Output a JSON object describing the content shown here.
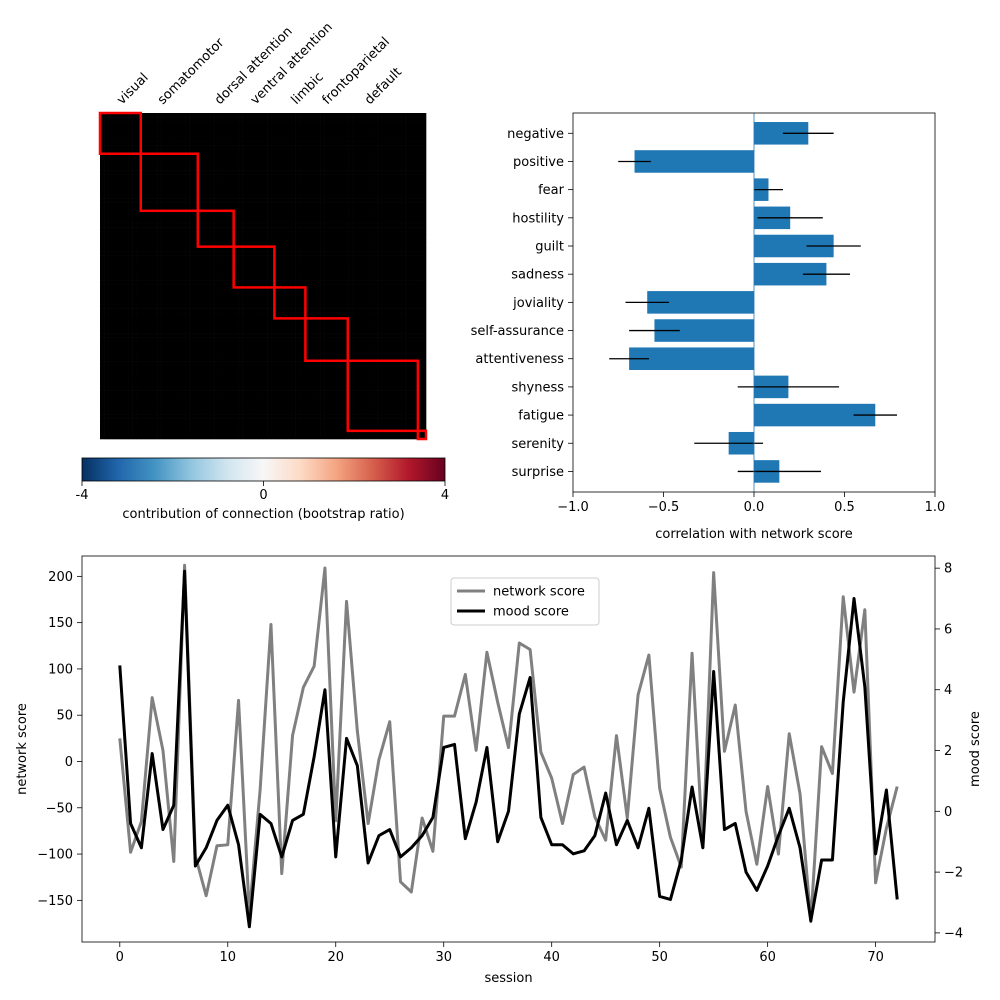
{
  "chart_data": [
    {
      "type": "heatmap",
      "networks": [
        "visual",
        "somatomotor",
        "dorsal attention",
        "ventral attention",
        "limbic",
        "frontoparietal",
        "default"
      ],
      "network_spans": [
        [
          0,
          0.125
        ],
        [
          0.125,
          0.3
        ],
        [
          0.3,
          0.41
        ],
        [
          0.41,
          0.535
        ],
        [
          0.535,
          0.63
        ],
        [
          0.63,
          0.76
        ],
        [
          0.76,
          0.975
        ],
        [
          0.975,
          1.0
        ]
      ],
      "colormap": "RdBu_r",
      "vmin": -4,
      "vmax": 4,
      "colorbar_ticks": [
        "-4",
        "0",
        "4"
      ],
      "colorbar_label": "contribution of connection (bootstrap ratio)",
      "outline_color": "#ff0000"
    },
    {
      "type": "bar",
      "orientation": "horizontal",
      "categories": [
        "negative",
        "positive",
        "fear",
        "hostility",
        "guilt",
        "sadness",
        "joviality",
        "self-assurance",
        "attentiveness",
        "shyness",
        "fatigue",
        "serenity",
        "surprise"
      ],
      "values": [
        0.3,
        -0.66,
        0.08,
        0.2,
        0.44,
        0.4,
        -0.59,
        -0.55,
        -0.69,
        0.19,
        0.67,
        -0.14,
        0.14
      ],
      "errors": [
        0.14,
        0.09,
        0.08,
        0.18,
        0.15,
        0.13,
        0.12,
        0.14,
        0.11,
        0.28,
        0.12,
        0.19,
        0.23
      ],
      "xlabel": "correlation with network score",
      "xlim": [
        -1.0,
        1.0
      ],
      "xticks": [
        "−1.0",
        "−0.5",
        "0.0",
        "0.5",
        "1.0"
      ],
      "bar_color": "#1f77b4",
      "grid": false
    },
    {
      "type": "line",
      "xlabel": "session",
      "ylabel_left": "network score",
      "ylabel_right": "mood score",
      "xlim": [
        -3.5,
        75.5
      ],
      "ylim_left": [
        -195,
        222
      ],
      "ylim_right": [
        -4.3,
        8.4
      ],
      "xticks": [
        "0",
        "10",
        "20",
        "30",
        "40",
        "50",
        "60",
        "70"
      ],
      "yticks_left": [
        "−150",
        "−100",
        "−50",
        "0",
        "50",
        "100",
        "150",
        "200"
      ],
      "yticks_right": [
        "−4",
        "−2",
        "0",
        "2",
        "4",
        "6",
        "8"
      ],
      "legend_position": "upper center",
      "series": [
        {
          "name": "network score",
          "color": "#808080",
          "axis": "left",
          "values": [
            25,
            -98,
            -65,
            69,
            12,
            -108,
            212,
            -102,
            -145,
            -91,
            -90,
            66,
            -165,
            -30,
            148,
            -121,
            28,
            80,
            103,
            209,
            -64,
            173,
            33,
            -67,
            2,
            43,
            -130,
            -141,
            -61,
            -97,
            49,
            49,
            94,
            12,
            118,
            64,
            15,
            128,
            121,
            10,
            -18,
            -67,
            -14,
            -6,
            -60,
            -85,
            28,
            -61,
            72,
            115,
            -29,
            -82,
            -114,
            117,
            -93,
            204,
            11,
            61,
            -54,
            -111,
            -27,
            -100,
            30,
            -35,
            -173,
            16,
            -13,
            178,
            75,
            164,
            -131,
            -72,
            -27
          ]
        },
        {
          "name": "mood score",
          "color": "#000000",
          "axis": "right",
          "values": [
            4.8,
            -0.4,
            -1.2,
            1.9,
            -0.6,
            0.2,
            7.9,
            -1.8,
            -1.2,
            -0.3,
            0.2,
            -1.1,
            -3.8,
            -0.1,
            -0.4,
            -1.5,
            -0.3,
            -0.1,
            1.8,
            4.0,
            -1.5,
            2.4,
            1.5,
            -1.7,
            -0.8,
            -0.6,
            -1.5,
            -1.2,
            -0.8,
            -0.2,
            2.1,
            2.2,
            -0.9,
            0.3,
            2.1,
            -1.0,
            0.0,
            3.2,
            4.4,
            -0.2,
            -1.1,
            -1.1,
            -1.4,
            -1.3,
            -0.8,
            0.6,
            -1.1,
            -0.3,
            -1.2,
            0.1,
            -2.8,
            -2.9,
            -1.6,
            0.8,
            -1.2,
            4.6,
            -0.6,
            -0.4,
            -2.0,
            -2.6,
            -1.8,
            -0.8,
            0.1,
            -1.2,
            -3.6,
            -1.6,
            -1.6,
            3.6,
            7.0,
            4.1,
            -1.4,
            0.7,
            -2.9
          ]
        }
      ]
    }
  ]
}
